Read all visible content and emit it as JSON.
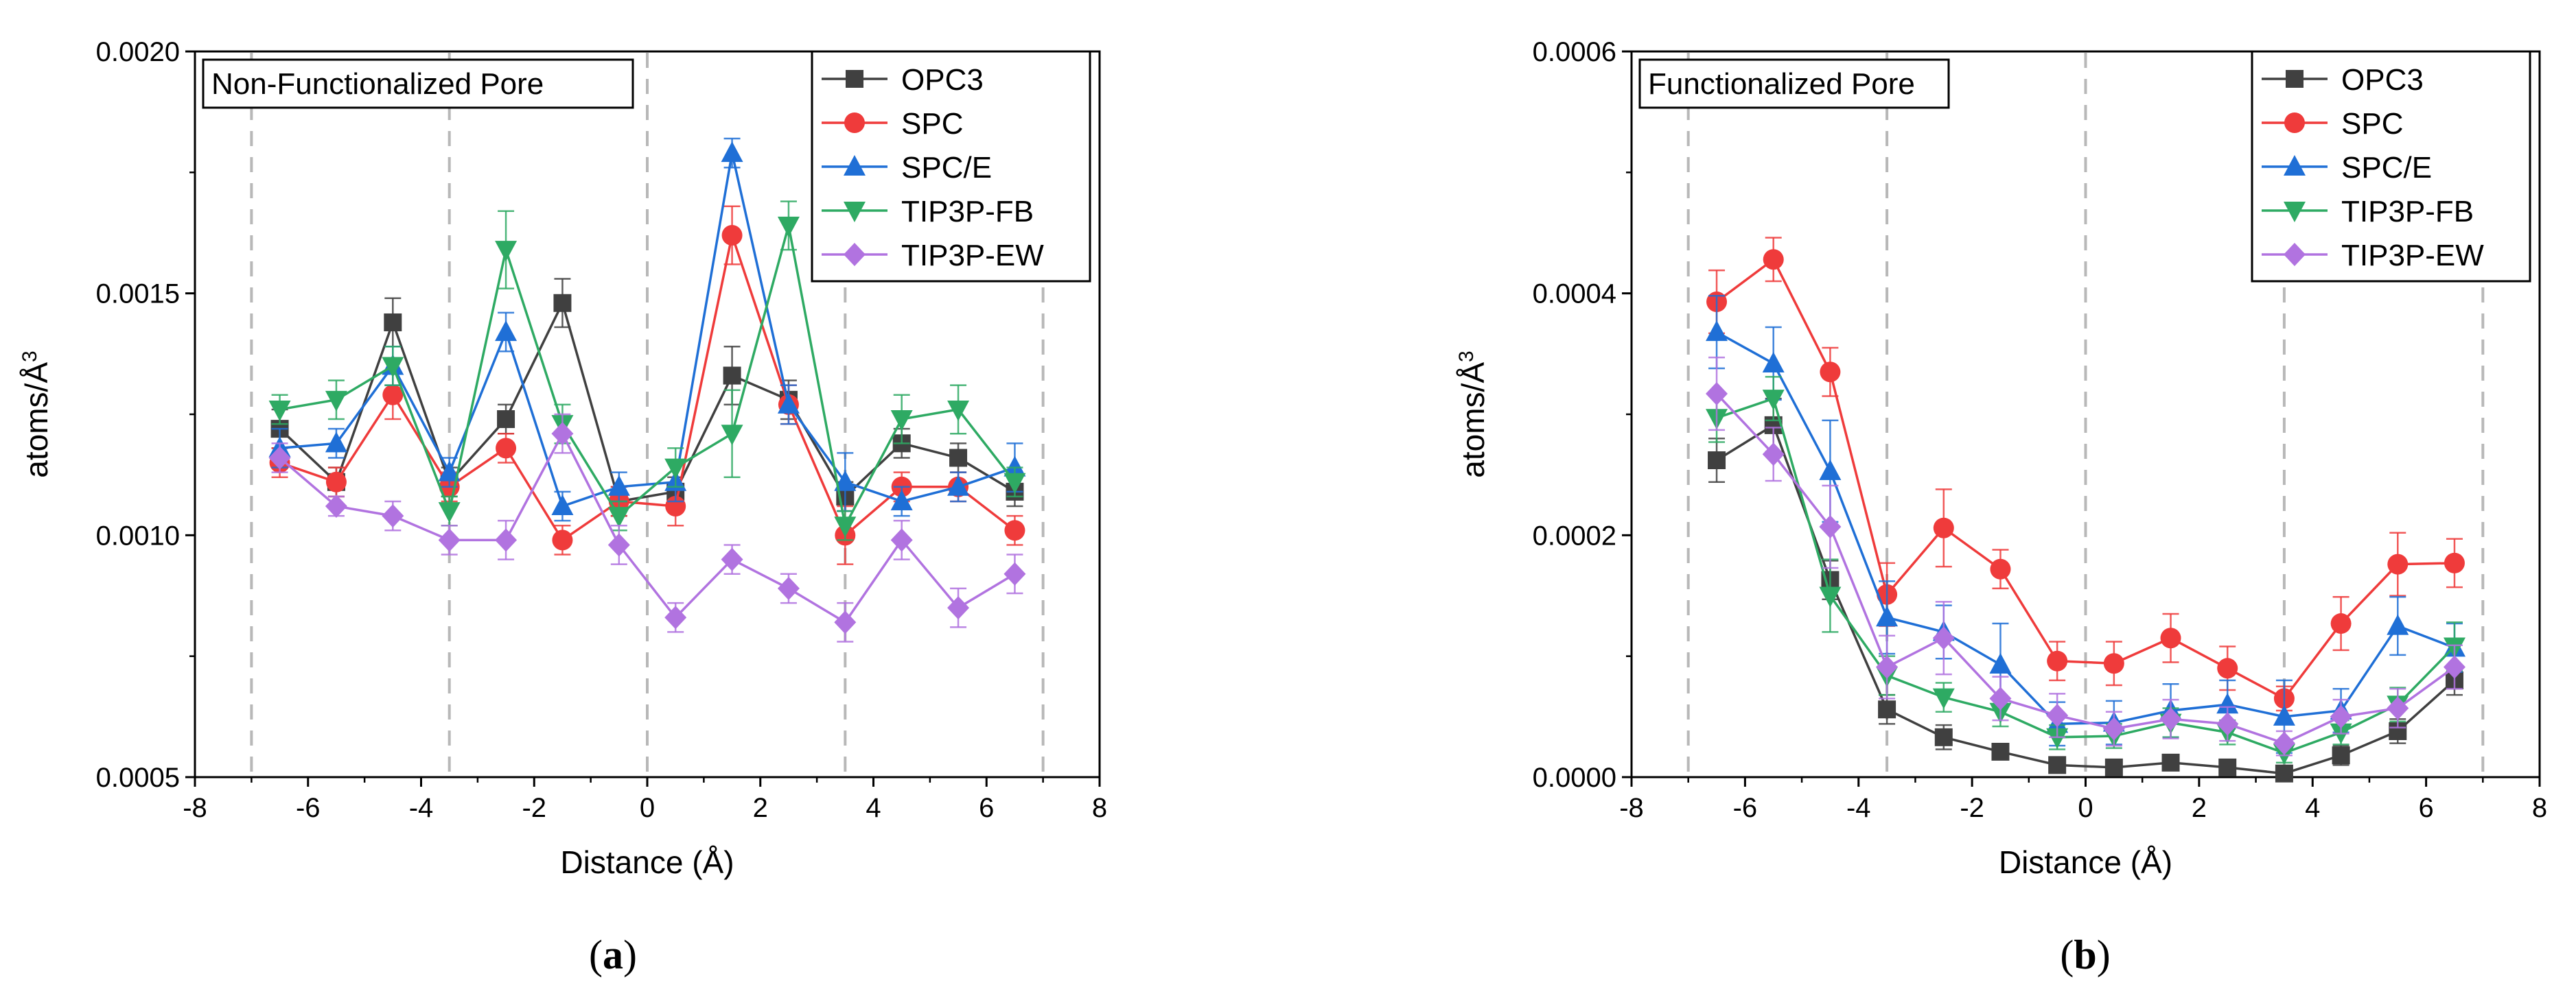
{
  "chart_data": [
    {
      "type": "line",
      "title": "Non-Functionalized Pore",
      "panel_label": "(a)",
      "panel_letter": "a",
      "xlabel": "Distance (Å)",
      "ylabel": "atoms/Å",
      "ylabel_sup": "3",
      "xlim": [
        -8,
        8
      ],
      "ylim": [
        0.0005,
        0.002
      ],
      "xticks": [
        -8,
        -6,
        -4,
        -2,
        0,
        2,
        4,
        6,
        8
      ],
      "xtick_labels": [
        "-8",
        "-6",
        "-4",
        "-2",
        "0",
        "2",
        "4",
        "6",
        "8"
      ],
      "yticks": [
        0.0005,
        0.001,
        0.0015,
        0.002
      ],
      "ytick_labels": [
        "0.0005",
        "0.0010",
        "0.0015",
        "0.0020"
      ],
      "vlines": [
        -7,
        -3.5,
        0,
        3.5,
        7
      ],
      "legend_position": "top-right",
      "x": [
        -6.5,
        -5.5,
        -4.5,
        -3.5,
        -2.5,
        -1.5,
        -0.5,
        0.5,
        1.5,
        2.5,
        3.5,
        4.5,
        5.5,
        6.5
      ],
      "series": [
        {
          "name": "OPC3",
          "color": "#404040",
          "marker": "square",
          "values": [
            0.00122,
            0.00111,
            0.00144,
            0.00111,
            0.00124,
            0.00148,
            0.00107,
            0.00109,
            0.00133,
            0.00128,
            0.00108,
            0.00119,
            0.00116,
            0.00109
          ],
          "errors": [
            4e-05,
            3e-05,
            5e-05,
            3e-05,
            3e-05,
            5e-05,
            3e-05,
            3e-05,
            6e-05,
            4e-05,
            3e-05,
            3e-05,
            3e-05,
            3e-05
          ]
        },
        {
          "name": "SPC",
          "color": "#ef3b3b",
          "marker": "circle",
          "values": [
            0.00115,
            0.00111,
            0.00129,
            0.0011,
            0.00118,
            0.00099,
            0.00107,
            0.00106,
            0.00162,
            0.00127,
            0.001,
            0.0011,
            0.0011,
            0.00101
          ],
          "errors": [
            3e-05,
            3e-05,
            5e-05,
            3e-05,
            3e-05,
            3e-05,
            3e-05,
            4e-05,
            6e-05,
            4e-05,
            6e-05,
            3e-05,
            3e-05,
            3e-05
          ]
        },
        {
          "name": "SPC/E",
          "color": "#1f6fd6",
          "marker": "triangle-up",
          "values": [
            0.00118,
            0.00119,
            0.00135,
            0.00113,
            0.00142,
            0.00106,
            0.0011,
            0.00111,
            0.00179,
            0.00127,
            0.00111,
            0.00107,
            0.0011,
            0.00114
          ],
          "errors": [
            4e-05,
            3e-05,
            4e-05,
            3e-05,
            4e-05,
            3e-05,
            3e-05,
            4e-05,
            3e-05,
            4e-05,
            6e-05,
            3e-05,
            3e-05,
            5e-05
          ]
        },
        {
          "name": "TIP3P-FB",
          "color": "#2eaa63",
          "marker": "triangle-down",
          "values": [
            0.00126,
            0.00128,
            0.00135,
            0.00105,
            0.00159,
            0.00123,
            0.00104,
            0.00114,
            0.00121,
            0.00164,
            0.00102,
            0.00124,
            0.00126,
            0.00111
          ],
          "errors": [
            3e-05,
            4e-05,
            4e-05,
            3e-05,
            8e-05,
            4e-05,
            3e-05,
            4e-05,
            9e-05,
            5e-05,
            3e-05,
            5e-05,
            5e-05,
            3e-05
          ]
        },
        {
          "name": "TIP3P-EW",
          "color": "#b173e0",
          "marker": "diamond",
          "values": [
            0.00116,
            0.00106,
            0.00104,
            0.00099,
            0.00099,
            0.00121,
            0.00098,
            0.00083,
            0.00095,
            0.00089,
            0.00082,
            0.00099,
            0.00085,
            0.00092
          ],
          "errors": [
            3e-05,
            2e-05,
            3e-05,
            3e-05,
            4e-05,
            4e-05,
            4e-05,
            3e-05,
            3e-05,
            3e-05,
            4e-05,
            4e-05,
            4e-05,
            4e-05
          ]
        }
      ]
    },
    {
      "type": "line",
      "title": "Functionalized Pore",
      "panel_label": "(b)",
      "panel_letter": "b",
      "xlabel": "Distance (Å)",
      "ylabel": "atoms/Å",
      "ylabel_sup": "3",
      "xlim": [
        -8,
        8
      ],
      "ylim": [
        0,
        0.0006
      ],
      "xticks": [
        -8,
        -6,
        -4,
        -2,
        0,
        2,
        4,
        6,
        8
      ],
      "xtick_labels": [
        "-8",
        "-6",
        "-4",
        "-2",
        "0",
        "2",
        "4",
        "6",
        "8"
      ],
      "yticks": [
        0,
        0.0002,
        0.0004,
        0.0006
      ],
      "ytick_labels": [
        "0.0000",
        "0.0002",
        "0.0004",
        "0.0006"
      ],
      "vlines": [
        -7,
        -3.5,
        0,
        3.5,
        7
      ],
      "legend_position": "top-right",
      "x": [
        -6.5,
        -5.5,
        -4.5,
        -3.5,
        -2.5,
        -1.5,
        -0.5,
        0.5,
        1.5,
        2.5,
        3.5,
        4.5,
        5.5,
        6.5
      ],
      "series": [
        {
          "name": "OPC3",
          "color": "#404040",
          "marker": "square",
          "values": [
            0.000262,
            0.000291,
            0.000163,
            5.6e-05,
            3.3e-05,
            2.1e-05,
            1e-05,
            8e-06,
            1.2e-05,
            8e-06,
            3e-06,
            1.8e-05,
            3.8e-05,
            8e-05
          ],
          "errors": [
            1.8e-05,
            2.2e-05,
            1.6e-05,
            1.2e-05,
            1e-05,
            6e-06,
            6e-06,
            6e-06,
            6e-06,
            6e-06,
            4e-06,
            8e-06,
            1e-05,
            1.2e-05
          ]
        },
        {
          "name": "SPC",
          "color": "#ef3b3b",
          "marker": "circle",
          "values": [
            0.000393,
            0.000428,
            0.000335,
            0.000151,
            0.000206,
            0.000172,
            9.6e-05,
            9.4e-05,
            0.000115,
            9e-05,
            6.5e-05,
            0.000127,
            0.000176,
            0.000177
          ],
          "errors": [
            2.6e-05,
            1.8e-05,
            2e-05,
            2.6e-05,
            3.2e-05,
            1.6e-05,
            1.6e-05,
            1.8e-05,
            2e-05,
            1.8e-05,
            1e-05,
            2.2e-05,
            2.6e-05,
            2e-05
          ]
        },
        {
          "name": "SPC/E",
          "color": "#1f6fd6",
          "marker": "triangle-up",
          "values": [
            0.000368,
            0.000342,
            0.000253,
            0.000132,
            0.00012,
            9.3e-05,
            4.4e-05,
            4.5e-05,
            5.5e-05,
            6e-05,
            5e-05,
            5.5e-05,
            0.000125,
            0.000107
          ],
          "errors": [
            3e-05,
            3e-05,
            4.2e-05,
            3e-05,
            2.2e-05,
            3.4e-05,
            1.8e-05,
            1.8e-05,
            2.2e-05,
            2e-05,
            3e-05,
            1.8e-05,
            2.4e-05,
            2e-05
          ]
        },
        {
          "name": "TIP3P-FB",
          "color": "#2eaa63",
          "marker": "triangle-down",
          "values": [
            0.000297,
            0.000313,
            0.00015,
            8.4e-05,
            6.6e-05,
            5.4e-05,
            3.3e-05,
            3.4e-05,
            4.5e-05,
            3.7e-05,
            2e-05,
            3.7e-05,
            6e-05,
            0.000108
          ],
          "errors": [
            2e-05,
            1.8e-05,
            3e-05,
            1.6e-05,
            1.2e-05,
            1.2e-05,
            1e-05,
            1e-05,
            1.2e-05,
            1e-05,
            8e-06,
            1e-05,
            1.4e-05,
            2e-05
          ]
        },
        {
          "name": "TIP3P-EW",
          "color": "#b173e0",
          "marker": "diamond",
          "values": [
            0.000317,
            0.000267,
            0.000207,
            9.1e-05,
            0.000115,
            6.5e-05,
            5.1e-05,
            4e-05,
            4.8e-05,
            4.4e-05,
            2.8e-05,
            5e-05,
            5.7e-05,
            9.1e-05
          ],
          "errors": [
            3e-05,
            2.2e-05,
            3.4e-05,
            2.6e-05,
            3e-05,
            1.8e-05,
            1.8e-05,
            1.4e-05,
            1.6e-05,
            1.4e-05,
            1e-05,
            1.4e-05,
            1.6e-05,
            1.8e-05
          ]
        }
      ]
    }
  ]
}
